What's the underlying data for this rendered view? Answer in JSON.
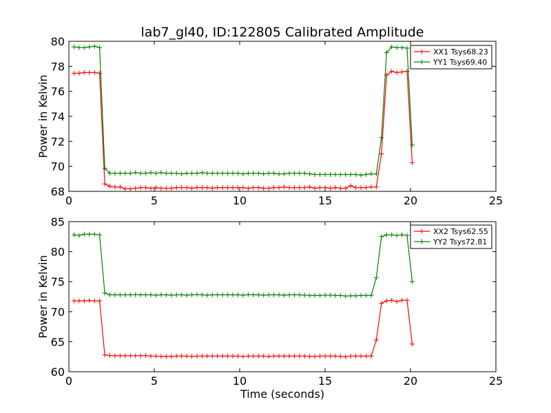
{
  "title": "lab7_gl40, ID:122805 Calibrated Amplitude",
  "chart_data": [
    {
      "type": "line",
      "xlabel": "",
      "ylabel": "Power in Kelvin",
      "xlim": [
        0,
        25
      ],
      "ylim": [
        68,
        80
      ],
      "xticks": [
        "0",
        "5",
        "10",
        "15",
        "20",
        "25"
      ],
      "yticks": [
        "68",
        "70",
        "72",
        "74",
        "76",
        "78",
        "80"
      ],
      "grid": false,
      "legend_position": "top-right",
      "x": [
        0.3,
        0.6,
        0.9,
        1.2,
        1.5,
        1.8,
        2.1,
        2.4,
        2.7,
        3.0,
        3.3,
        3.6,
        3.9,
        4.2,
        4.5,
        4.8,
        5.1,
        5.4,
        5.7,
        6.0,
        6.3,
        6.6,
        6.9,
        7.2,
        7.5,
        7.8,
        8.1,
        8.4,
        8.7,
        9.0,
        9.3,
        9.6,
        9.9,
        10.2,
        10.5,
        10.8,
        11.1,
        11.4,
        11.7,
        12.0,
        12.3,
        12.6,
        12.9,
        13.2,
        13.5,
        13.8,
        14.1,
        14.4,
        14.7,
        15.0,
        15.3,
        15.6,
        15.9,
        16.2,
        16.5,
        16.8,
        17.1,
        17.4,
        17.7,
        18.0,
        18.3,
        18.6,
        18.9,
        19.2,
        19.5,
        19.8,
        20.1
      ],
      "series": [
        {
          "name": "XX1 Tsys68.23",
          "color": "#ff0000",
          "values": [
            77.45,
            77.45,
            77.5,
            77.5,
            77.5,
            77.45,
            68.6,
            68.4,
            68.35,
            68.35,
            68.2,
            68.2,
            68.25,
            68.3,
            68.3,
            68.25,
            68.3,
            68.25,
            68.25,
            68.25,
            68.3,
            68.3,
            68.3,
            68.25,
            68.3,
            68.3,
            68.3,
            68.25,
            68.3,
            68.3,
            68.3,
            68.3,
            68.3,
            68.3,
            68.25,
            68.3,
            68.3,
            68.25,
            68.25,
            68.3,
            68.3,
            68.35,
            68.3,
            68.3,
            68.3,
            68.3,
            68.35,
            68.25,
            68.3,
            68.3,
            68.25,
            68.3,
            68.25,
            68.25,
            68.45,
            68.3,
            68.3,
            68.3,
            68.35,
            68.35,
            71.0,
            77.3,
            77.6,
            77.5,
            77.55,
            77.6,
            70.3
          ]
        },
        {
          "name": "YY1 Tsys69.40",
          "color": "#008000",
          "values": [
            79.55,
            79.5,
            79.5,
            79.55,
            79.6,
            79.5,
            69.85,
            69.45,
            69.45,
            69.45,
            69.45,
            69.45,
            69.5,
            69.45,
            69.45,
            69.5,
            69.45,
            69.5,
            69.45,
            69.45,
            69.45,
            69.4,
            69.45,
            69.45,
            69.45,
            69.5,
            69.45,
            69.45,
            69.45,
            69.45,
            69.45,
            69.45,
            69.45,
            69.4,
            69.45,
            69.45,
            69.45,
            69.4,
            69.45,
            69.45,
            69.4,
            69.4,
            69.45,
            69.45,
            69.45,
            69.45,
            69.4,
            69.35,
            69.35,
            69.35,
            69.35,
            69.35,
            69.35,
            69.35,
            69.35,
            69.35,
            69.3,
            69.35,
            69.4,
            69.4,
            72.3,
            79.1,
            79.55,
            79.5,
            79.5,
            79.45,
            71.7
          ]
        }
      ]
    },
    {
      "type": "line",
      "xlabel": "Time (seconds)",
      "ylabel": "Power in Kelvin",
      "xlim": [
        0,
        25
      ],
      "ylim": [
        60,
        85
      ],
      "xticks": [
        "0",
        "5",
        "10",
        "15",
        "20",
        "25"
      ],
      "yticks": [
        "60",
        "65",
        "70",
        "75",
        "80",
        "85"
      ],
      "grid": false,
      "legend_position": "top-right",
      "x": [
        0.3,
        0.6,
        0.9,
        1.2,
        1.5,
        1.8,
        2.1,
        2.4,
        2.7,
        3.0,
        3.3,
        3.6,
        3.9,
        4.2,
        4.5,
        4.8,
        5.1,
        5.4,
        5.7,
        6.0,
        6.3,
        6.6,
        6.9,
        7.2,
        7.5,
        7.8,
        8.1,
        8.4,
        8.7,
        9.0,
        9.3,
        9.6,
        9.9,
        10.2,
        10.5,
        10.8,
        11.1,
        11.4,
        11.7,
        12.0,
        12.3,
        12.6,
        12.9,
        13.2,
        13.5,
        13.8,
        14.1,
        14.4,
        14.7,
        15.0,
        15.3,
        15.6,
        15.9,
        16.2,
        16.5,
        16.8,
        17.1,
        17.4,
        17.7,
        18.0,
        18.3,
        18.6,
        18.9,
        19.2,
        19.5,
        19.8,
        20.1
      ],
      "series": [
        {
          "name": "XX2 Tsys62.55",
          "color": "#ff0000",
          "values": [
            71.8,
            71.8,
            71.8,
            71.85,
            71.8,
            71.8,
            62.8,
            62.7,
            62.65,
            62.65,
            62.65,
            62.65,
            62.65,
            62.65,
            62.7,
            62.6,
            62.6,
            62.55,
            62.55,
            62.55,
            62.6,
            62.6,
            62.6,
            62.55,
            62.6,
            62.6,
            62.6,
            62.6,
            62.6,
            62.6,
            62.6,
            62.6,
            62.6,
            62.55,
            62.6,
            62.6,
            62.6,
            62.6,
            62.55,
            62.6,
            62.6,
            62.6,
            62.6,
            62.6,
            62.6,
            62.6,
            62.55,
            62.55,
            62.6,
            62.6,
            62.6,
            62.6,
            62.55,
            62.5,
            62.6,
            62.6,
            62.6,
            62.6,
            62.6,
            65.3,
            71.4,
            71.8,
            71.9,
            71.7,
            71.9,
            71.9,
            64.6
          ]
        },
        {
          "name": "YY2 Tsys72.81",
          "color": "#008000",
          "values": [
            82.8,
            82.7,
            82.9,
            82.9,
            82.9,
            82.8,
            73.1,
            72.8,
            72.8,
            72.8,
            72.8,
            72.8,
            72.85,
            72.8,
            72.8,
            72.8,
            72.75,
            72.8,
            72.8,
            72.75,
            72.8,
            72.8,
            72.75,
            72.8,
            72.85,
            72.8,
            72.75,
            72.8,
            72.8,
            72.8,
            72.8,
            72.8,
            72.8,
            72.75,
            72.85,
            72.8,
            72.8,
            72.75,
            72.8,
            72.8,
            72.8,
            72.75,
            72.8,
            72.8,
            72.8,
            72.75,
            72.7,
            72.7,
            72.7,
            72.75,
            72.75,
            72.7,
            72.7,
            72.6,
            72.65,
            72.65,
            72.7,
            72.7,
            72.7,
            75.7,
            82.5,
            82.8,
            82.8,
            82.7,
            82.8,
            82.7,
            75.0
          ]
        }
      ]
    }
  ]
}
